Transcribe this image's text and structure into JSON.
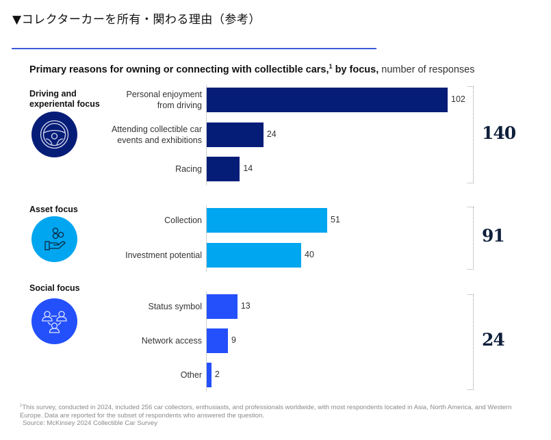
{
  "page": {
    "heading": "▼コレクターカーを所有・関わる理由（参考）"
  },
  "chart_data": {
    "type": "bar",
    "orientation": "horizontal",
    "title": "Primary reasons for owning or connecting with collectible cars,",
    "title_footnote_marker": "1",
    "title_suffix_bold": " by focus,",
    "title_unit": " number of responses",
    "xlim": [
      0,
      102
    ],
    "grid": false,
    "groups": [
      {
        "label": "Driving and experiental focus",
        "label_lines": [
          "Driving and",
          "experiental focus"
        ],
        "icon": "steering-wheel-icon",
        "color": "#061d78",
        "total": 140,
        "categories": [
          {
            "label": "Personal enjoyment from driving",
            "lines": [
              "Personal enjoyment",
              "from driving"
            ],
            "value": 102
          },
          {
            "label": "Attending collectible car events and exhibitions",
            "lines": [
              "Attending collectible car",
              "events and exhibitions"
            ],
            "value": 24
          },
          {
            "label": "Racing",
            "lines": [
              "Racing"
            ],
            "value": 14
          }
        ]
      },
      {
        "label": "Asset focus",
        "label_lines": [
          "Asset focus"
        ],
        "icon": "hand-coins-icon",
        "color": "#00a6ef",
        "total": 91,
        "categories": [
          {
            "label": "Collection",
            "lines": [
              "Collection"
            ],
            "value": 51
          },
          {
            "label": "Investment potential",
            "lines": [
              "Investment potential"
            ],
            "value": 40
          }
        ]
      },
      {
        "label": "Social focus",
        "label_lines": [
          "Social focus"
        ],
        "icon": "people-network-icon",
        "color": "#2450fb",
        "total": 24,
        "categories": [
          {
            "label": "Status symbol",
            "lines": [
              "Status symbol"
            ],
            "value": 13
          },
          {
            "label": "Network access",
            "lines": [
              "Network access"
            ],
            "value": 9
          },
          {
            "label": "Other",
            "lines": [
              "Other"
            ],
            "value": 2
          }
        ]
      }
    ],
    "footnote_marker": "1",
    "footnote": "This survey, conducted in 2024, included 256 car collectors, enthusiasts, and professionals worldwide, with most respondents located in Asia, North America, and Western Europe. Data are reported for the subset of respondents who answered the question.",
    "source": "Source: McKinsey 2024 Collectible Car Survey"
  },
  "colors": {
    "rule": "#3b5bdb",
    "driving": "#061d78",
    "asset": "#00a6ef",
    "social": "#2450fb"
  }
}
